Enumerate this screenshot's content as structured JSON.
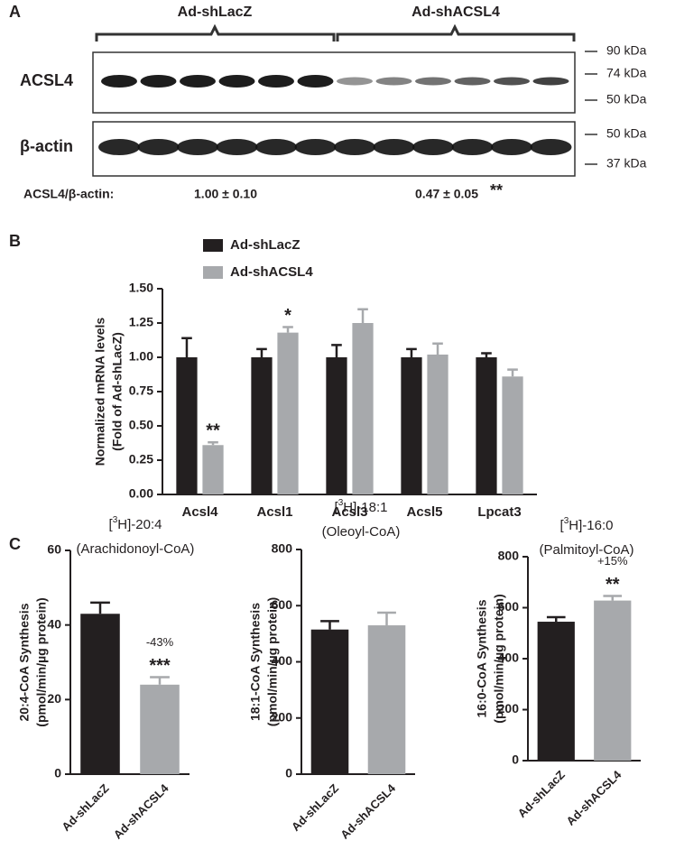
{
  "panel_a": {
    "letter": "A",
    "groups": [
      "Ad-shLacZ",
      "Ad-shACSL4"
    ],
    "blots": [
      "ACSL4",
      "β-actin"
    ],
    "markers_top": [
      "90 kDa",
      "74 kDa",
      "50 kDa"
    ],
    "markers_bottom": [
      "50 kDa",
      "37 kDa"
    ],
    "ratio_label": "ACSL4/β-actin:",
    "ratio_lacz": "1.00 ± 0.10",
    "ratio_acsl4": "0.47 ± 0.05",
    "ratio_sig": "**"
  },
  "letter_b": "B",
  "letter_c": "C",
  "chart_data": [
    {
      "type": "bar",
      "ylabel": [
        "Normalized mRNA levels",
        "(Fold of Ad-shLacZ)"
      ],
      "categories": [
        "Acsl4",
        "Acsl1",
        "Acsl3",
        "Acsl5",
        "Lpcat3"
      ],
      "series": [
        {
          "name": "Ad-shLacZ",
          "color": "#231f20",
          "values": [
            1,
            1,
            1,
            1,
            1
          ],
          "errors": [
            0.14,
            0.06,
            0.09,
            0.06,
            0.03
          ]
        },
        {
          "name": "Ad-shACSL4",
          "color": "#a7a9ac",
          "values": [
            0.36,
            1.18,
            1.25,
            1.02,
            0.86
          ],
          "errors": [
            0.02,
            0.04,
            0.1,
            0.08,
            0.05
          ],
          "significance": [
            "**",
            "*",
            null,
            null,
            null
          ]
        }
      ],
      "ylim": [
        0,
        1.5
      ],
      "yticks": [
        {
          "value": 0,
          "label": "0.00"
        },
        0.25,
        {
          "value": 0.5,
          "label": "0.50"
        },
        0.75,
        {
          "value": 1,
          "label": "1.00"
        },
        1.25,
        {
          "value": 1.5,
          "label": "1.50"
        }
      ]
    },
    {
      "type": "bar",
      "title": [
        "[3H]-20:4",
        "(Arachidonoyl-CoA)"
      ],
      "ylabel": [
        "20:4-CoA Synthesis",
        "(pmol/min/µg protein)"
      ],
      "categories": [
        "Ad-shLacZ",
        "Ad-shACSL4"
      ],
      "colors": [
        "#231f20",
        "#a7a9ac"
      ],
      "values": [
        43,
        24
      ],
      "errors": [
        3,
        2
      ],
      "pct_labels": [
        null,
        "-43%"
      ],
      "significance": [
        null,
        "***"
      ],
      "ylim": [
        0,
        60
      ],
      "yticks": [
        0,
        20,
        40,
        60
      ]
    },
    {
      "type": "bar",
      "title": [
        "[3H]-18:1",
        "(Oleoyl-CoA)"
      ],
      "ylabel": [
        "18:1-CoA Synthesis",
        "(pmol/min/µg protein)"
      ],
      "categories": [
        "Ad-shLacZ",
        "Ad-shACSL4"
      ],
      "colors": [
        "#231f20",
        "#a7a9ac"
      ],
      "values": [
        515,
        530
      ],
      "errors": [
        30,
        45
      ],
      "ylim": [
        0,
        800
      ],
      "yticks": [
        0,
        200,
        400,
        600,
        800
      ]
    },
    {
      "type": "bar",
      "title": [
        "[3H]-16:0",
        "(Palmitoyl-CoA)"
      ],
      "ylabel": [
        "16:0-CoA Synthesis",
        "(pmol/min/µg protein)"
      ],
      "categories": [
        "Ad-shLacZ",
        "Ad-shACSL4"
      ],
      "colors": [
        "#231f20",
        "#a7a9ac"
      ],
      "values": [
        545,
        628
      ],
      "errors": [
        18,
        18
      ],
      "pct_labels": [
        null,
        "+15%"
      ],
      "significance": [
        null,
        "**"
      ],
      "ylim": [
        0,
        800
      ],
      "yticks": [
        0,
        200,
        400,
        600,
        800
      ]
    }
  ]
}
